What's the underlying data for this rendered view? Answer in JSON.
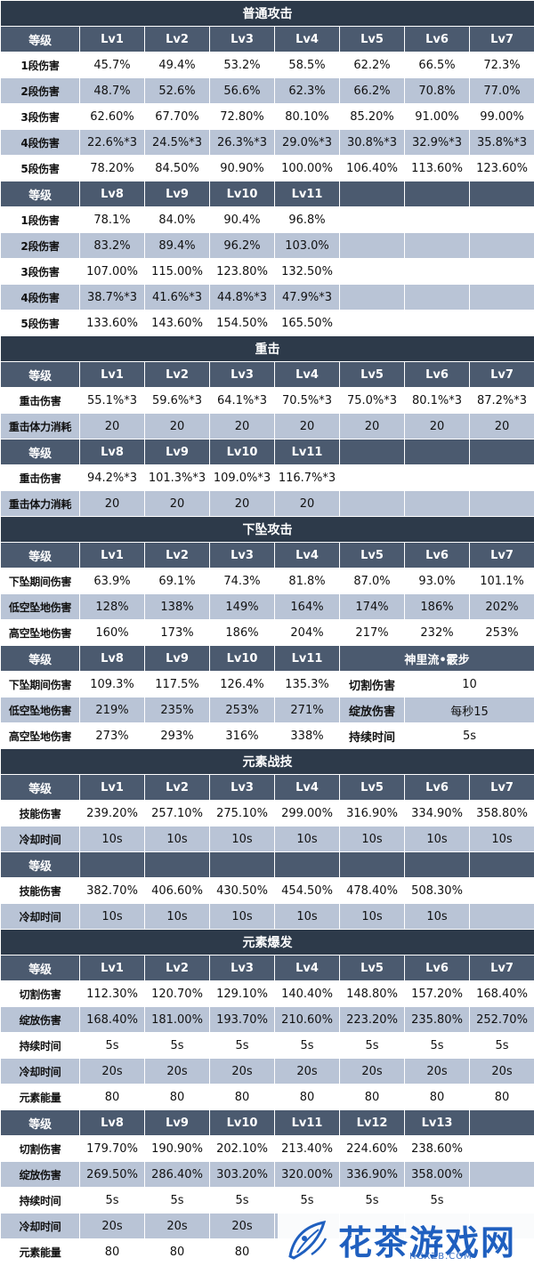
{
  "sections": [
    {
      "title": "普通攻击",
      "blocks": [
        {
          "header_label": "等级",
          "levels": [
            "Lv1",
            "Lv2",
            "Lv3",
            "Lv4",
            "Lv5",
            "Lv6",
            "Lv7"
          ],
          "rows": [
            {
              "label": "1段伤害",
              "values": [
                "45.7%",
                "49.4%",
                "53.2%",
                "58.5%",
                "62.2%",
                "66.5%",
                "72.3%"
              ]
            },
            {
              "label": "2段伤害",
              "values": [
                "48.7%",
                "52.6%",
                "56.6%",
                "62.3%",
                "66.2%",
                "70.8%",
                "77.0%"
              ]
            },
            {
              "label": "3段伤害",
              "values": [
                "62.60%",
                "67.70%",
                "72.80%",
                "80.10%",
                "85.20%",
                "91.00%",
                "99.00%"
              ]
            },
            {
              "label": "4段伤害",
              "values": [
                "22.6%*3",
                "24.5%*3",
                "26.3%*3",
                "29.0%*3",
                "30.8%*3",
                "32.9%*3",
                "35.8%*3"
              ]
            },
            {
              "label": "5段伤害",
              "values": [
                "78.20%",
                "84.50%",
                "90.90%",
                "100.00%",
                "106.40%",
                "113.60%",
                "123.60%"
              ]
            }
          ]
        },
        {
          "header_label": "等级",
          "levels": [
            "Lv8",
            "Lv9",
            "Lv10",
            "Lv11",
            "",
            "",
            ""
          ],
          "rows": [
            {
              "label": "1段伤害",
              "values": [
                "78.1%",
                "84.0%",
                "90.4%",
                "96.8%",
                "",
                "",
                ""
              ]
            },
            {
              "label": "2段伤害",
              "values": [
                "83.2%",
                "89.4%",
                "96.2%",
                "103.0%",
                "",
                "",
                ""
              ]
            },
            {
              "label": "3段伤害",
              "values": [
                "107.00%",
                "115.00%",
                "123.80%",
                "132.50%",
                "",
                "",
                ""
              ]
            },
            {
              "label": "4段伤害",
              "values": [
                "38.7%*3",
                "41.6%*3",
                "44.8%*3",
                "47.9%*3",
                "",
                "",
                ""
              ]
            },
            {
              "label": "5段伤害",
              "values": [
                "133.60%",
                "143.60%",
                "154.50%",
                "165.50%",
                "",
                "",
                ""
              ]
            }
          ]
        }
      ]
    },
    {
      "title": "重击",
      "blocks": [
        {
          "header_label": "等级",
          "levels": [
            "Lv1",
            "Lv2",
            "Lv3",
            "Lv4",
            "Lv5",
            "Lv6",
            "Lv7"
          ],
          "rows": [
            {
              "label": "重击伤害",
              "values": [
                "55.1%*3",
                "59.6%*3",
                "64.1%*3",
                "70.5%*3",
                "75.0%*3",
                "80.1%*3",
                "87.2%*3"
              ]
            },
            {
              "label": "重击体力消耗",
              "values": [
                "20",
                "20",
                "20",
                "20",
                "20",
                "20",
                "20"
              ]
            }
          ]
        },
        {
          "header_label": "等级",
          "levels": [
            "Lv8",
            "Lv9",
            "Lv10",
            "Lv11",
            "",
            "",
            ""
          ],
          "rows": [
            {
              "label": "重击伤害",
              "values": [
                "94.2%*3",
                "101.3%*3",
                "109.0%*3",
                "116.7%*3",
                "",
                "",
                ""
              ]
            },
            {
              "label": "重击体力消耗",
              "values": [
                "20",
                "20",
                "20",
                "20",
                "",
                "",
                ""
              ]
            }
          ]
        }
      ]
    },
    {
      "title": "下坠攻击",
      "blocks": [
        {
          "header_label": "等级",
          "levels": [
            "Lv1",
            "Lv2",
            "Lv3",
            "Lv4",
            "Lv5",
            "Lv6",
            "Lv7"
          ],
          "rows": [
            {
              "label": "下坠期间伤害",
              "values": [
                "63.9%",
                "69.1%",
                "74.3%",
                "81.8%",
                "87.0%",
                "93.0%",
                "101.1%"
              ]
            },
            {
              "label": "低空坠地伤害",
              "values": [
                "128%",
                "138%",
                "149%",
                "164%",
                "174%",
                "186%",
                "202%"
              ]
            },
            {
              "label": "高空坠地伤害",
              "values": [
                "160%",
                "173%",
                "186%",
                "204%",
                "217%",
                "232%",
                "253%"
              ]
            }
          ]
        },
        {
          "header_label": "等级",
          "levels": [
            "Lv8",
            "Lv9",
            "Lv10",
            "Lv11"
          ],
          "rows": [
            {
              "label": "下坠期间伤害",
              "values": [
                "109.3%",
                "117.5%",
                "126.4%",
                "135.3%"
              ]
            },
            {
              "label": "低空坠地伤害",
              "values": [
                "219%",
                "235%",
                "253%",
                "271%"
              ]
            },
            {
              "label": "高空坠地伤害",
              "values": [
                "273%",
                "293%",
                "316%",
                "338%"
              ]
            }
          ],
          "side_table": {
            "title": "神里流•霰步",
            "rows": [
              {
                "label": "切割伤害",
                "value": "10"
              },
              {
                "label": "绽放伤害",
                "value": "每秒15"
              },
              {
                "label": "持续时间",
                "value": "5s"
              }
            ]
          }
        }
      ]
    },
    {
      "title": "元素战技",
      "blocks": [
        {
          "header_label": "等级",
          "levels": [
            "Lv1",
            "Lv2",
            "Lv3",
            "Lv4",
            "Lv5",
            "Lv6",
            "Lv7"
          ],
          "rows": [
            {
              "label": "技能伤害",
              "values": [
                "239.20%",
                "257.10%",
                "275.10%",
                "299.00%",
                "316.90%",
                "334.90%",
                "358.80%"
              ]
            },
            {
              "label": "冷却时间",
              "values": [
                "10s",
                "10s",
                "10s",
                "10s",
                "10s",
                "10s",
                "10s"
              ]
            }
          ]
        },
        {
          "header_label": "等级",
          "levels": [
            "",
            "",
            "",
            "",
            "",
            "",
            ""
          ],
          "rows": [
            {
              "label": "技能伤害",
              "values": [
                "382.70%",
                "406.60%",
                "430.50%",
                "454.50%",
                "478.40%",
                "508.30%",
                ""
              ]
            },
            {
              "label": "冷却时间",
              "values": [
                "10s",
                "10s",
                "10s",
                "10s",
                "10s",
                "10s",
                ""
              ]
            }
          ]
        }
      ]
    },
    {
      "title": "元素爆发",
      "blocks": [
        {
          "header_label": "等级",
          "levels": [
            "Lv1",
            "Lv2",
            "Lv3",
            "Lv4",
            "Lv5",
            "Lv6",
            "Lv7"
          ],
          "rows": [
            {
              "label": "切割伤害",
              "values": [
                "112.30%",
                "120.70%",
                "129.10%",
                "140.40%",
                "148.80%",
                "157.20%",
                "168.40%"
              ]
            },
            {
              "label": "绽放伤害",
              "values": [
                "168.40%",
                "181.00%",
                "193.70%",
                "210.60%",
                "223.20%",
                "235.80%",
                "252.70%"
              ]
            },
            {
              "label": "持续时间",
              "values": [
                "5s",
                "5s",
                "5s",
                "5s",
                "5s",
                "5s",
                "5s"
              ]
            },
            {
              "label": "冷却时间",
              "values": [
                "20s",
                "20s",
                "20s",
                "20s",
                "20s",
                "20s",
                "20s"
              ]
            },
            {
              "label": "元素能量",
              "values": [
                "80",
                "80",
                "80",
                "80",
                "80",
                "80",
                "80"
              ]
            }
          ]
        },
        {
          "header_label": "等级",
          "levels": [
            "Lv8",
            "Lv9",
            "Lv10",
            "Lv11",
            "Lv12",
            "Lv13",
            ""
          ],
          "rows": [
            {
              "label": "切割伤害",
              "values": [
                "179.70%",
                "190.90%",
                "202.10%",
                "213.40%",
                "224.60%",
                "238.60%",
                ""
              ]
            },
            {
              "label": "绽放伤害",
              "values": [
                "269.50%",
                "286.40%",
                "303.20%",
                "320.00%",
                "336.90%",
                "358.00%",
                ""
              ]
            },
            {
              "label": "持续时间",
              "values": [
                "5s",
                "5s",
                "5s",
                "5s",
                "5s",
                "5s",
                ""
              ]
            },
            {
              "label": "冷却时间",
              "values": [
                "20s",
                "20s",
                "20s",
                "",
                "",
                "",
                ""
              ]
            },
            {
              "label": "元素能量",
              "values": [
                "80",
                "80",
                "80",
                "",
                "",
                "",
                ""
              ]
            }
          ]
        }
      ]
    }
  ],
  "watermark": {
    "logo_icon": "flower-logo-icon",
    "name": "花茶游戏网",
    "url": "HCXZB.COM",
    "color": "#1f5fbf"
  }
}
